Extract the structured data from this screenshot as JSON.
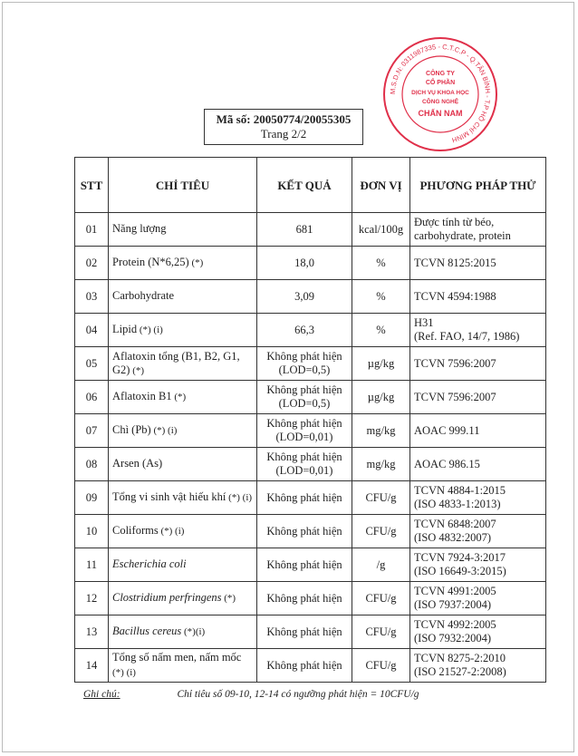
{
  "header": {
    "code_label": "Mã số: 20050774/20055305",
    "page_label": "Trang 2/2"
  },
  "stamp": {
    "text": "CÔNG TY CỔ PHẦN DỊCH VỤ KHOA HỌC CÔNG NGHỆ CHẤN NAM",
    "ring": "M.S.D.N: 0311987335 - C.T.C.P - Q.TÂN BÌNH - T.P HỒ CHÍ MINH",
    "color": "#e0304a"
  },
  "table": {
    "headers": [
      "STT",
      "CHỈ TIÊU",
      "KẾT QUẢ",
      "ĐƠN VỊ",
      "PHƯƠNG PHÁP THỬ"
    ],
    "rows": [
      {
        "stt": "01",
        "name": "Năng lượng",
        "suffix": "",
        "italic": false,
        "result": [
          "681"
        ],
        "unit": "kcal/100g",
        "method": [
          "Được tính từ béo,",
          "carbohydrate, protein"
        ]
      },
      {
        "stt": "02",
        "name": "Protein (N*6,25)",
        "suffix": " (*)",
        "italic": false,
        "result": [
          "18,0"
        ],
        "unit": "%",
        "method": [
          "TCVN 8125:2015"
        ]
      },
      {
        "stt": "03",
        "name": "Carbohydrate",
        "suffix": "",
        "italic": false,
        "result": [
          "3,09"
        ],
        "unit": "%",
        "method": [
          "TCVN 4594:1988"
        ]
      },
      {
        "stt": "04",
        "name": "Lipid",
        "suffix": " (*) (i)",
        "italic": false,
        "result": [
          "66,3"
        ],
        "unit": "%",
        "method": [
          "H31",
          "(Ref. FAO, 14/7, 1986)"
        ]
      },
      {
        "stt": "05",
        "name": "Aflatoxin tổng (B1, B2, G1, G2)",
        "suffix": " (*)",
        "italic": false,
        "result": [
          "Không phát hiện",
          "(LOD=0,5)"
        ],
        "unit": "µg/kg",
        "method": [
          "TCVN 7596:2007"
        ]
      },
      {
        "stt": "06",
        "name": "Aflatoxin B1",
        "suffix": " (*)",
        "italic": false,
        "result": [
          "Không phát hiện",
          "(LOD=0,5)"
        ],
        "unit": "µg/kg",
        "method": [
          "TCVN 7596:2007"
        ]
      },
      {
        "stt": "07",
        "name": "Chì (Pb)",
        "suffix": " (*) (i)",
        "italic": false,
        "result": [
          "Không phát hiện",
          "(LOD=0,01)"
        ],
        "unit": "mg/kg",
        "method": [
          "AOAC 999.11"
        ]
      },
      {
        "stt": "08",
        "name": "Arsen (As)",
        "suffix": "",
        "italic": false,
        "result": [
          "Không phát hiện",
          "(LOD=0,01)"
        ],
        "unit": "mg/kg",
        "method": [
          "AOAC 986.15"
        ]
      },
      {
        "stt": "09",
        "name": "Tổng vi sinh vật  hiếu khí",
        "suffix": " (*) (i)",
        "italic": false,
        "result": [
          "Không phát hiện"
        ],
        "unit": "CFU/g",
        "method": [
          "TCVN 4884-1:2015",
          "(ISO 4833-1:2013)"
        ]
      },
      {
        "stt": "10",
        "name": "Coliforms",
        "suffix": " (*) (i)",
        "italic": false,
        "result": [
          "Không phát hiện"
        ],
        "unit": "CFU/g",
        "method": [
          "TCVN 6848:2007",
          "(ISO 4832:2007)"
        ]
      },
      {
        "stt": "11",
        "name": "Escherichia  coli",
        "suffix": "",
        "italic": true,
        "result": [
          "Không phát hiện"
        ],
        "unit": "/g",
        "method": [
          "TCVN 7924-3:2017",
          "(ISO 16649-3:2015)"
        ]
      },
      {
        "stt": "12",
        "name": "Clostridium perfringens",
        "suffix": " (*)",
        "italic": true,
        "result": [
          "Không phát hiện"
        ],
        "unit": "CFU/g",
        "method": [
          "TCVN 4991:2005",
          "(ISO 7937:2004)"
        ]
      },
      {
        "stt": "13",
        "name": "Bacillus cereus",
        "suffix": " (*)(i)",
        "italic": true,
        "result": [
          "Không phát hiện"
        ],
        "unit": "CFU/g",
        "method": [
          "TCVN 4992:2005",
          "(ISO 7932:2004)"
        ]
      },
      {
        "stt": "14",
        "name": "Tổng số nấm men, nấm mốc",
        "suffix": " (*) (i)",
        "italic": false,
        "result": [
          "Không phát hiện"
        ],
        "unit": "CFU/g",
        "method": [
          "TCVN 8275-2:2010",
          "(ISO 21527-2:2008)"
        ]
      }
    ]
  },
  "note": {
    "label": "Ghi chú:",
    "text": "Chỉ tiêu số 09-10, 12-14 có ngưỡng phát hiện = 10CFU/g"
  }
}
